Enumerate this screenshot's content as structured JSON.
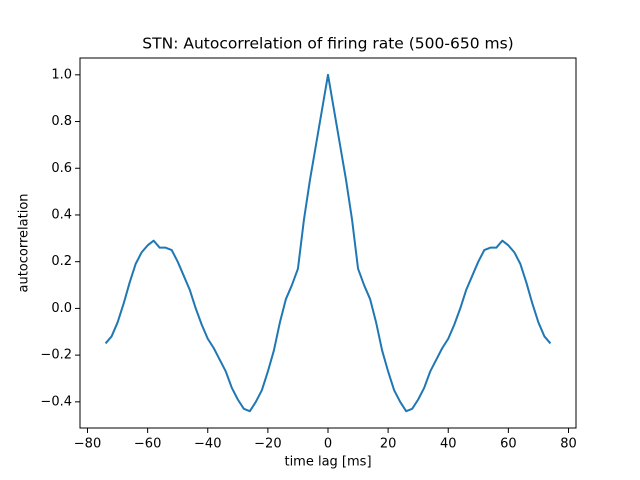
{
  "chart_data": {
    "type": "line",
    "title": "STN: Autocorrelation of firing rate (500-650 ms)",
    "x_label": "time lag [ms]",
    "y_label": "autocorrelation",
    "x": [
      -74,
      -72,
      -70,
      -68,
      -66,
      -64,
      -62,
      -60,
      -58,
      -56,
      -54,
      -52,
      -50,
      -48,
      -46,
      -44,
      -42,
      -40,
      -38,
      -36,
      -34,
      -32,
      -30,
      -28,
      -26,
      -24,
      -22,
      -20,
      -18,
      -16,
      -14,
      -12,
      -10,
      -8,
      -6,
      -4,
      -2,
      0,
      2,
      4,
      6,
      8,
      10,
      12,
      14,
      16,
      18,
      20,
      22,
      24,
      26,
      28,
      30,
      32,
      34,
      36,
      38,
      40,
      42,
      44,
      46,
      48,
      50,
      52,
      54,
      56,
      58,
      60,
      62,
      64,
      66,
      68,
      70,
      72,
      74
    ],
    "series": [
      {
        "color": "#1f77b4",
        "values": [
          -0.15,
          -0.12,
          -0.06,
          0.02,
          0.11,
          0.19,
          0.24,
          0.27,
          0.29,
          0.26,
          0.26,
          0.25,
          0.2,
          0.14,
          0.08,
          0.0,
          -0.07,
          -0.13,
          -0.17,
          -0.22,
          -0.27,
          -0.34,
          -0.39,
          -0.43,
          -0.44,
          -0.4,
          -0.35,
          -0.27,
          -0.18,
          -0.06,
          0.04,
          0.1,
          0.17,
          0.38,
          0.55,
          0.7,
          0.85,
          1.0,
          0.85,
          0.7,
          0.55,
          0.38,
          0.17,
          0.1,
          0.04,
          -0.06,
          -0.18,
          -0.27,
          -0.35,
          -0.4,
          -0.44,
          -0.43,
          -0.39,
          -0.34,
          -0.27,
          -0.22,
          -0.17,
          -0.13,
          -0.07,
          0.0,
          0.08,
          0.14,
          0.2,
          0.25,
          0.26,
          0.26,
          0.29,
          0.27,
          0.24,
          0.19,
          0.11,
          0.02,
          -0.06,
          -0.12,
          -0.15
        ]
      }
    ],
    "xlim": [
      -82.5,
      82.5
    ],
    "xticks": [
      {
        "value": -80,
        "label": "−80"
      },
      {
        "value": -60,
        "label": "−60"
      },
      {
        "value": -40,
        "label": "−40"
      },
      {
        "value": -20,
        "label": "−20"
      },
      0,
      20,
      40,
      60,
      80
    ],
    "ylim": [
      -0.512,
      1.072
    ],
    "yticks": [
      {
        "value": -0.4,
        "label": "−0.4"
      },
      {
        "value": -0.2,
        "label": "−0.2"
      },
      {
        "value": 0,
        "label": "0.0"
      },
      0.2,
      0.4,
      0.6,
      0.8,
      {
        "value": 1,
        "label": "1.0"
      }
    ],
    "grid": false
  }
}
